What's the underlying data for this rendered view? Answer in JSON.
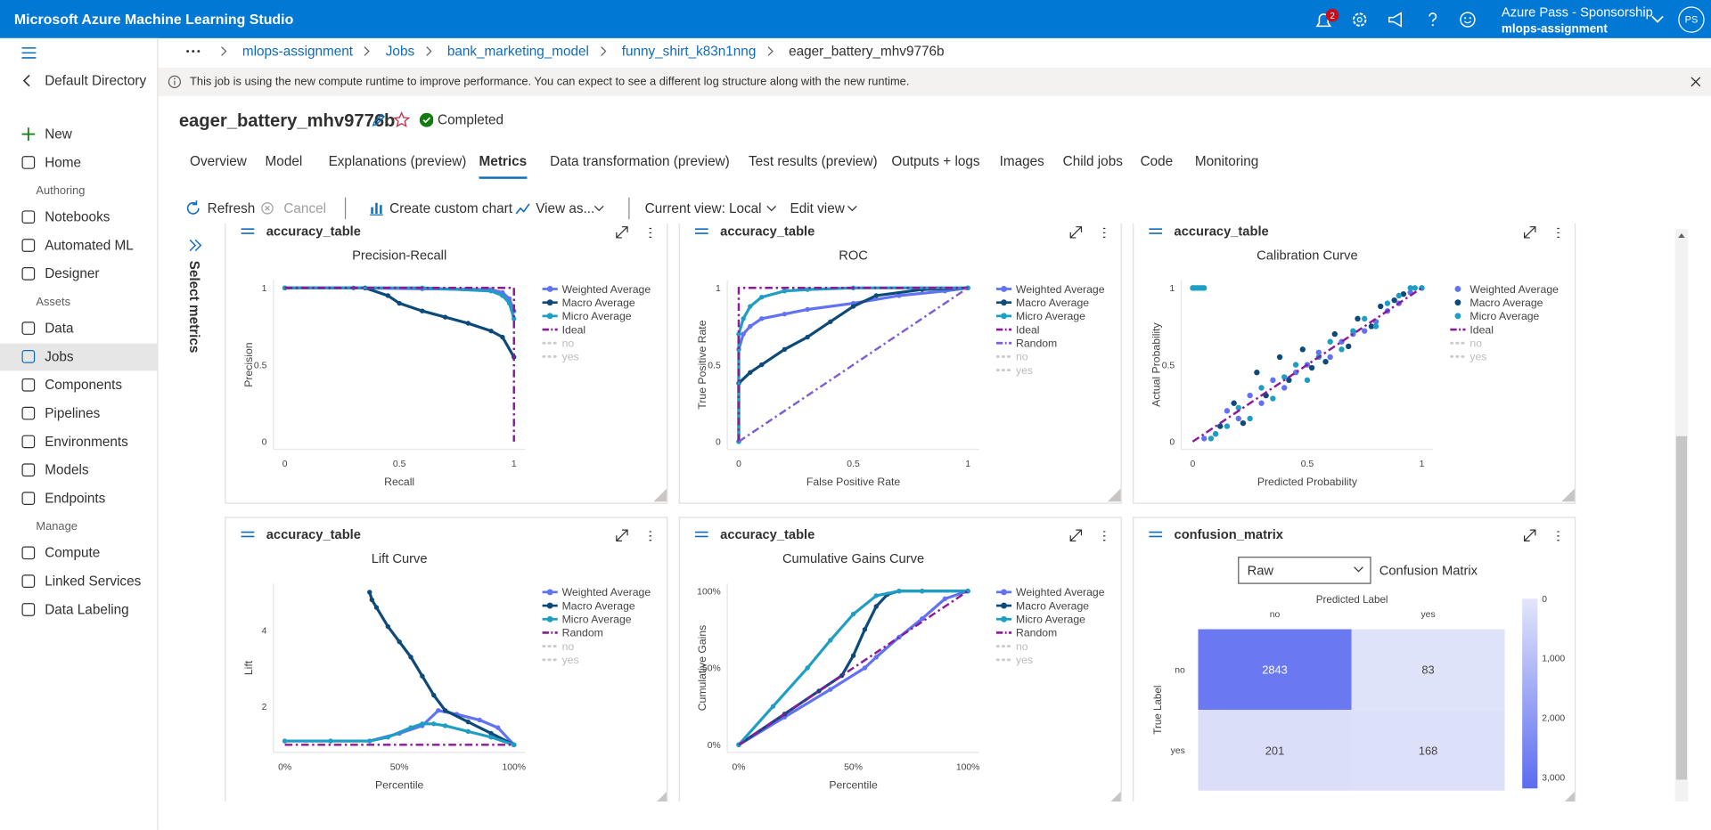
{
  "topbar": {
    "title": "Microsoft Azure Machine Learning Studio",
    "notification_count": 2,
    "account": "Azure Pass - Sponsorship",
    "workspace": "mlops-assignment",
    "avatar": "PS"
  },
  "sidebar": {
    "directory": "Default Directory",
    "top_items": [
      {
        "label": "New"
      },
      {
        "label": "Home"
      }
    ],
    "sections": [
      {
        "title": "Authoring",
        "items": [
          {
            "label": "Notebooks"
          },
          {
            "label": "Automated ML"
          },
          {
            "label": "Designer"
          }
        ]
      },
      {
        "title": "Assets",
        "items": [
          {
            "label": "Data"
          },
          {
            "label": "Jobs",
            "selected": true
          },
          {
            "label": "Components"
          },
          {
            "label": "Pipelines"
          },
          {
            "label": "Environments"
          },
          {
            "label": "Models"
          },
          {
            "label": "Endpoints"
          }
        ]
      },
      {
        "title": "Manage",
        "items": [
          {
            "label": "Compute"
          },
          {
            "label": "Linked Services"
          },
          {
            "label": "Data Labeling"
          }
        ]
      }
    ]
  },
  "breadcrumb": [
    "mlops-assignment",
    "Jobs",
    "bank_marketing_model",
    "funny_shirt_k83n1nng",
    "eager_battery_mhv9776b"
  ],
  "banner": "This job is using the new compute runtime to improve performance. You can expect to see a different log structure along with the new runtime.",
  "job": {
    "name": "eager_battery_mhv9776b",
    "status": "Completed"
  },
  "tabs": [
    {
      "label": "Overview"
    },
    {
      "label": "Model"
    },
    {
      "label": "Explanations (preview)"
    },
    {
      "label": "Metrics",
      "selected": true
    },
    {
      "label": "Data transformation (preview)"
    },
    {
      "label": "Test results (preview)"
    },
    {
      "label": "Outputs + logs"
    },
    {
      "label": "Images"
    },
    {
      "label": "Child jobs"
    },
    {
      "label": "Code"
    },
    {
      "label": "Monitoring"
    }
  ],
  "toolbar": {
    "refresh": "Refresh",
    "cancel": "Cancel",
    "create_chart": "Create custom chart",
    "view_as": "View as...",
    "current_view_label": "Current view:",
    "current_view": "Local",
    "edit_view": "Edit view"
  },
  "metrics_panel": "Select metrics",
  "chart_data": [
    {
      "card_title": "accuracy_table",
      "type": "line",
      "title": "Precision-Recall",
      "xlabel": "Recall",
      "ylabel": "Precision",
      "xlim": [
        -0.05,
        1.05
      ],
      "ylim": [
        -0.05,
        1.05
      ],
      "xticks": [
        0,
        0.5,
        1
      ],
      "yticks": [
        0,
        0.5,
        1
      ],
      "grid": false,
      "series": [
        {
          "name": "Weighted Average",
          "color": "#6172f3",
          "mode": "lines+markers",
          "x": [
            0,
            0.3,
            0.6,
            0.9,
            0.95,
            0.98,
            1
          ],
          "values": [
            1,
            1,
            0.995,
            0.99,
            0.97,
            0.93,
            0.85
          ]
        },
        {
          "name": "Macro Average",
          "color": "#0d4a7a",
          "mode": "lines+markers",
          "x": [
            0,
            0.35,
            0.45,
            0.5,
            0.6,
            0.7,
            0.8,
            0.9,
            0.95,
            1
          ],
          "values": [
            1,
            1,
            0.95,
            0.9,
            0.85,
            0.81,
            0.77,
            0.72,
            0.68,
            0.55
          ]
        },
        {
          "name": "Micro Average",
          "color": "#1e9ec2",
          "mode": "lines+markers",
          "x": [
            0,
            0.6,
            0.9,
            0.95,
            0.98,
            1
          ],
          "values": [
            1,
            1,
            0.98,
            0.95,
            0.9,
            0.8
          ]
        },
        {
          "name": "Ideal",
          "color": "#8b1a9b",
          "mode": "lines",
          "dash": "dashdot",
          "x": [
            0,
            1,
            1
          ],
          "values": [
            1,
            1,
            0
          ]
        },
        {
          "name": "no",
          "visible": false
        },
        {
          "name": "yes",
          "visible": false
        }
      ]
    },
    {
      "card_title": "accuracy_table",
      "type": "line",
      "title": "ROC",
      "xlabel": "False Positive Rate",
      "ylabel": "True Positive Rate",
      "xlim": [
        -0.05,
        1.05
      ],
      "ylim": [
        -0.05,
        1.05
      ],
      "xticks": [
        0,
        0.5,
        1
      ],
      "yticks": [
        0,
        0.5,
        1
      ],
      "grid": false,
      "series": [
        {
          "name": "Weighted Average",
          "color": "#6172f3",
          "mode": "lines+markers",
          "x": [
            0,
            0,
            0.02,
            0.05,
            0.1,
            0.2,
            0.3,
            0.5,
            0.7,
            0.9,
            1
          ],
          "values": [
            0,
            0.6,
            0.7,
            0.75,
            0.8,
            0.83,
            0.86,
            0.9,
            0.95,
            0.98,
            1
          ]
        },
        {
          "name": "Macro Average",
          "color": "#0d4a7a",
          "mode": "lines+markers",
          "x": [
            0,
            0,
            0.05,
            0.1,
            0.2,
            0.3,
            0.4,
            0.5,
            0.6,
            0.8,
            1
          ],
          "values": [
            0,
            0.38,
            0.45,
            0.5,
            0.6,
            0.68,
            0.78,
            0.88,
            0.95,
            0.99,
            1
          ]
        },
        {
          "name": "Micro Average",
          "color": "#1e9ec2",
          "mode": "lines+markers",
          "x": [
            0,
            0,
            0.02,
            0.05,
            0.1,
            0.2,
            0.3,
            0.5,
            1
          ],
          "values": [
            0,
            0.7,
            0.8,
            0.88,
            0.94,
            0.98,
            0.99,
            1,
            1
          ]
        },
        {
          "name": "Ideal",
          "color": "#8b1a9b",
          "mode": "lines",
          "dash": "dashdot",
          "x": [
            0,
            0,
            1
          ],
          "values": [
            0,
            1,
            1
          ]
        },
        {
          "name": "Random",
          "color": "#7e5fd6",
          "mode": "lines",
          "dash": "dashdot",
          "x": [
            0,
            1
          ],
          "values": [
            0,
            1
          ]
        },
        {
          "name": "no",
          "visible": false
        },
        {
          "name": "yes",
          "visible": false
        }
      ]
    },
    {
      "card_title": "accuracy_table",
      "type": "scatter",
      "title": "Calibration Curve",
      "xlabel": "Predicted Probability",
      "ylabel": "Actual Probability",
      "xlim": [
        -0.05,
        1.05
      ],
      "ylim": [
        -0.05,
        1.05
      ],
      "xticks": [
        0,
        0.5,
        1
      ],
      "yticks": [
        0,
        0.5,
        1
      ],
      "grid": false,
      "series": [
        {
          "name": "Weighted Average",
          "color": "#6172f3",
          "mode": "markers",
          "x": [
            0.05,
            0.1,
            0.15,
            0.2,
            0.25,
            0.3,
            0.35,
            0.4,
            0.45,
            0.5,
            0.55,
            0.6,
            0.65,
            0.7,
            0.75,
            0.8,
            0.85,
            0.9,
            0.95,
            1
          ],
          "values": [
            0.02,
            0.05,
            0.2,
            0.15,
            0.3,
            0.25,
            0.4,
            0.35,
            0.45,
            0.5,
            0.58,
            0.55,
            0.65,
            0.7,
            0.72,
            0.78,
            0.85,
            0.9,
            0.97,
            1
          ]
        },
        {
          "name": "Macro Average",
          "color": "#0d4a7a",
          "mode": "markers",
          "x": [
            0.12,
            0.18,
            0.22,
            0.28,
            0.32,
            0.38,
            0.42,
            0.48,
            0.52,
            0.58,
            0.62,
            0.68,
            0.72,
            0.78,
            0.82,
            0.88,
            0.92
          ],
          "values": [
            0.1,
            0.25,
            0.12,
            0.45,
            0.3,
            0.55,
            0.4,
            0.6,
            0.48,
            0.52,
            0.7,
            0.62,
            0.8,
            0.75,
            0.88,
            0.92,
            0.96
          ]
        },
        {
          "name": "Micro Average",
          "color": "#1e9ec2",
          "mode": "markers",
          "x": [
            0,
            0.01,
            0.02,
            0.03,
            0.04,
            0.05,
            0.08,
            0.1,
            0.15,
            0.2,
            0.25,
            0.3,
            0.35,
            0.4,
            0.45,
            0.5,
            0.55,
            0.6,
            0.65,
            0.7,
            0.75,
            0.8,
            0.85,
            0.9,
            0.95,
            0.97,
            1
          ],
          "values": [
            1,
            1,
            1,
            1,
            1,
            1,
            0.02,
            0.05,
            0.1,
            0.22,
            0.15,
            0.35,
            0.28,
            0.42,
            0.5,
            0.4,
            0.55,
            0.65,
            0.6,
            0.72,
            0.8,
            0.75,
            0.9,
            0.95,
            1,
            1,
            1
          ]
        },
        {
          "name": "Ideal",
          "color": "#8b1a9b",
          "mode": "lines",
          "dash": "dashdot",
          "x": [
            0,
            1
          ],
          "values": [
            0,
            1
          ]
        },
        {
          "name": "no",
          "visible": false
        },
        {
          "name": "yes",
          "visible": false
        }
      ]
    },
    {
      "card_title": "accuracy_table",
      "type": "line",
      "title": "Lift Curve",
      "xlabel": "Percentile",
      "ylabel": "Lift",
      "xlim": [
        -5,
        105
      ],
      "ylim": [
        0.8,
        5.23
      ],
      "xticks": [
        {
          "value": 0,
          "label": "0%"
        },
        {
          "value": 50,
          "label": "50%"
        },
        {
          "value": 100,
          "label": "100%"
        }
      ],
      "yticks": [
        2,
        4
      ],
      "grid": false,
      "series": [
        {
          "name": "Weighted Average",
          "color": "#6172f3",
          "mode": "lines+markers",
          "x": [
            0,
            20,
            37,
            50,
            60,
            67,
            75,
            85,
            93,
            100
          ],
          "values": [
            1.1,
            1.1,
            1.1,
            1.3,
            1.5,
            1.9,
            1.8,
            1.65,
            1.45,
            1
          ]
        },
        {
          "name": "Macro Average",
          "color": "#0d4a7a",
          "mode": "lines+markers",
          "x": [
            37,
            38,
            40,
            45,
            50,
            55,
            60,
            65,
            70,
            80,
            90,
            100
          ],
          "values": [
            5,
            4.8,
            4.6,
            4.1,
            3.7,
            3.3,
            2.8,
            2.3,
            1.9,
            1.6,
            1.3,
            1
          ]
        },
        {
          "name": "Micro Average",
          "color": "#1e9ec2",
          "mode": "lines+markers",
          "x": [
            0,
            20,
            37,
            45,
            55,
            60,
            65,
            70,
            80,
            90,
            100
          ],
          "values": [
            1.1,
            1.1,
            1.1,
            1.2,
            1.45,
            1.55,
            1.55,
            1.5,
            1.35,
            1.2,
            1
          ]
        },
        {
          "name": "Random",
          "color": "#8b1a9b",
          "mode": "lines",
          "dash": "dashdot",
          "x": [
            0,
            100
          ],
          "values": [
            1,
            1
          ]
        },
        {
          "name": "no",
          "visible": false
        },
        {
          "name": "yes",
          "visible": false
        }
      ]
    },
    {
      "card_title": "accuracy_table",
      "type": "line",
      "title": "Cumulative Gains Curve",
      "xlabel": "Percentile",
      "ylabel": "Cumulative Gains",
      "xlim": [
        -5,
        105
      ],
      "ylim": [
        -5,
        105
      ],
      "xticks": [
        {
          "value": 0,
          "label": "0%"
        },
        {
          "value": 50,
          "label": "50%"
        },
        {
          "value": 100,
          "label": "100%"
        }
      ],
      "yticks": [
        {
          "value": 0,
          "label": "0%"
        },
        {
          "value": 50,
          "label": "50%"
        },
        {
          "value": 100,
          "label": "100%"
        }
      ],
      "grid": false,
      "series": [
        {
          "name": "Weighted Average",
          "color": "#6172f3",
          "mode": "lines+markers",
          "x": [
            0,
            20,
            40,
            55,
            60,
            70,
            80,
            90,
            100
          ],
          "values": [
            0,
            18,
            36,
            50,
            57,
            70,
            82,
            95,
            100
          ]
        },
        {
          "name": "Macro Average",
          "color": "#0d4a7a",
          "mode": "lines+markers",
          "x": [
            0,
            20,
            35,
            45,
            50,
            55,
            60,
            65,
            70,
            80,
            100
          ],
          "values": [
            0,
            20,
            35,
            45,
            58,
            75,
            90,
            98,
            100,
            100,
            100
          ]
        },
        {
          "name": "Micro Average",
          "color": "#1e9ec2",
          "mode": "lines+markers",
          "x": [
            0,
            15,
            30,
            40,
            50,
            60,
            70,
            80,
            100
          ],
          "values": [
            0,
            25,
            50,
            68,
            85,
            97,
            100,
            100,
            100
          ]
        },
        {
          "name": "Random",
          "color": "#8b1a9b",
          "mode": "lines",
          "dash": "dashdot",
          "x": [
            0,
            100
          ],
          "values": [
            0,
            100
          ]
        },
        {
          "name": "no",
          "visible": false
        },
        {
          "name": "yes",
          "visible": false
        }
      ]
    },
    {
      "card_title": "confusion_matrix",
      "type": "heatmap",
      "dropdown": "Raw",
      "title": "Confusion Matrix",
      "xlabel": "Predicted Label",
      "ylabel": "True Label",
      "x_categories": [
        "no",
        "yes"
      ],
      "y_categories": [
        "no",
        "yes"
      ],
      "values": [
        [
          2843,
          83
        ],
        [
          201,
          168
        ]
      ],
      "colorscale": [
        "#e3e6fa",
        "#5b6cf0"
      ],
      "clim": [
        0,
        3190
      ],
      "cticks": [
        0,
        {
          "value": 1000,
          "label": "1,000"
        },
        {
          "value": 2000,
          "label": "2,000"
        },
        {
          "value": 3000,
          "label": "3,000"
        }
      ]
    }
  ]
}
